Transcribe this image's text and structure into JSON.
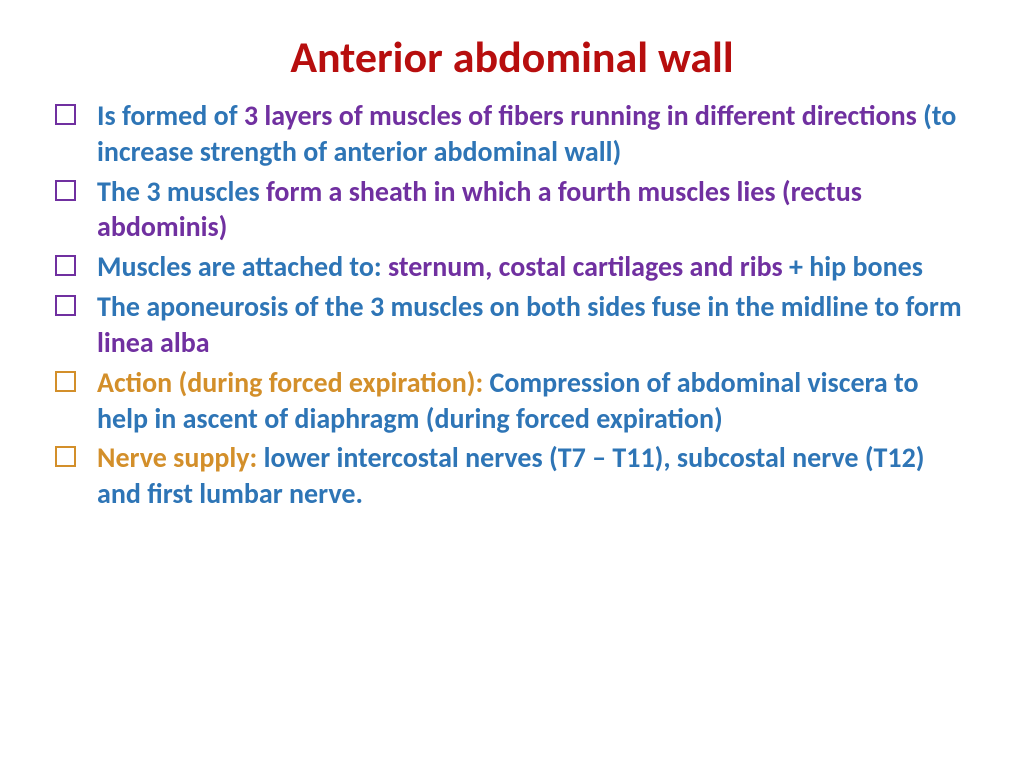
{
  "title": {
    "text": "Anterior abdominal wall",
    "color": "#b70e0e",
    "fontsize": 44
  },
  "body": {
    "fontsize": 28,
    "line_height": 1.28,
    "base_color": "#2e75b6",
    "emphasis_color": "#7030a0",
    "action_color": "#d38f2a"
  },
  "bullet_colors": {
    "default": "#7030a0",
    "action": "#d38f2a"
  },
  "items": [
    {
      "box_color": "default",
      "segments": [
        {
          "text": "Is formed of  ",
          "color": "base"
        },
        {
          "text": "3 layers  of muscles of  fibers running in different directions ",
          "color": "emph"
        },
        {
          "text": "(to increase strength of anterior abdominal wall)",
          "color": "base"
        }
      ]
    },
    {
      "box_color": "default",
      "segments": [
        {
          "text": "The 3 muscles ",
          "color": "base"
        },
        {
          "text": "form a sheath in which a fourth muscles lies (rectus abdominis)",
          "color": "emph"
        }
      ]
    },
    {
      "box_color": "default",
      "segments": [
        {
          "text": "Muscles are attached to: ",
          "color": "base"
        },
        {
          "text": "sternum, costal cartilages and ribs",
          "color": "emph"
        },
        {
          "text": " + hip bones",
          "color": "base"
        }
      ]
    },
    {
      "box_color": "default",
      "segments": [
        {
          "text": "The aponeurosis of the 3 muscles on both sides fuse in the midline  to form ",
          "color": "base"
        },
        {
          "text": "linea alba",
          "color": "emph"
        }
      ]
    },
    {
      "box_color": "action",
      "segments": [
        {
          "text": "Action (during forced expiration): ",
          "color": "action"
        },
        {
          "text": "Compression of abdominal viscera to help in ascent of diaphragm (during forced expiration)",
          "color": "base"
        }
      ]
    },
    {
      "box_color": "action",
      "segments": [
        {
          "text": "Nerve supply: ",
          "color": "action"
        },
        {
          "text": "lower  intercostal nerves (T7 – T11), subcostal nerve (T12) and first lumbar nerve.",
          "color": "base"
        }
      ]
    }
  ]
}
